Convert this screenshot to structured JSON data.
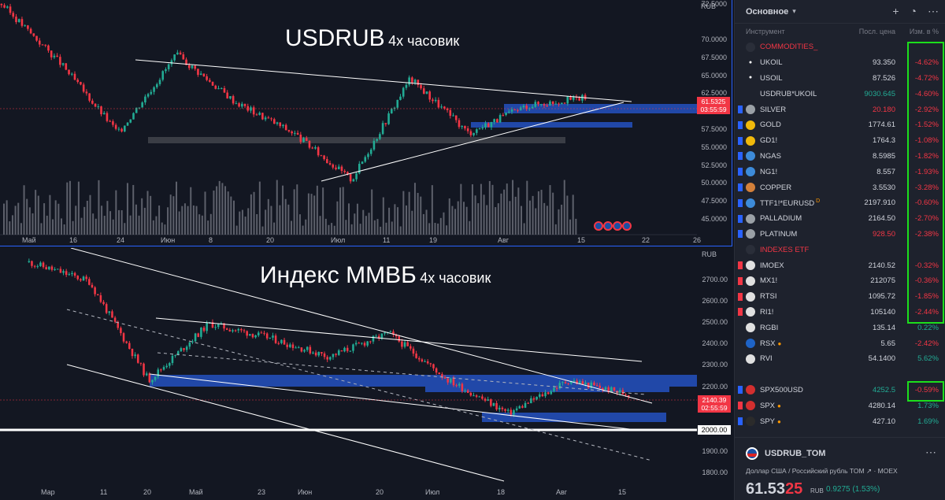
{
  "top_chart": {
    "title_big": "USDRUB",
    "title_small": "4x часовик",
    "currency": "RUB",
    "price_ticks": [
      "72.5000",
      "70.0000",
      "67.5000",
      "65.0000",
      "62.5000",
      "60.0000",
      "57.5000",
      "55.0000",
      "52.5000",
      "50.0000",
      "47.5000",
      "45.0000"
    ],
    "time_ticks": [
      "Май",
      "16",
      "24",
      "Июн",
      "8",
      "20",
      "Июл",
      "11",
      "19",
      "Авг",
      "15",
      "22",
      "26"
    ],
    "price_tag": [
      "61.5325",
      "03:55:59"
    ]
  },
  "bottom_chart": {
    "title_big": "Индекс ММВБ",
    "title_small": "4х часовик",
    "currency": "RUB",
    "price_ticks": [
      "2700.00",
      "2600.00",
      "2500.00",
      "2400.00",
      "2300.00",
      "2200.00",
      "2000.00",
      "1900.00",
      "1800.00"
    ],
    "time_ticks": [
      "Мар",
      "11",
      "20",
      "Май",
      "23",
      "Июн",
      "20",
      "Июл",
      "18",
      "Авг",
      "15"
    ],
    "price_tag": [
      "2140.39",
      "02:55:59"
    ],
    "level_tag": "2000.00"
  },
  "chart_data": [
    {
      "type": "line",
      "title": "USDRUB",
      "ylim": [
        44,
        74
      ],
      "x": [
        "Май",
        "16",
        "24",
        "Июн",
        "8",
        "20",
        "Июл",
        "11",
        "19",
        "Авг",
        "15"
      ],
      "series": [
        {
          "values": [
            73.5,
            66.0,
            57.0,
            67.0,
            61.0,
            57.0,
            51.0,
            64.0,
            57.0,
            60.5,
            61.53
          ]
        }
      ]
    },
    {
      "type": "line",
      "title": "Индекс ММВБ",
      "ylim": [
        1760,
        2760
      ],
      "x": [
        "Мар",
        "11",
        "20",
        "Май",
        "23",
        "Июн",
        "20",
        "Июл",
        "18",
        "Авг",
        "15"
      ],
      "series": [
        {
          "values": [
            2700,
            2620,
            2200,
            2440,
            2380,
            2300,
            2400,
            2200,
            2060,
            2200,
            2140.39
          ]
        }
      ]
    }
  ],
  "watchlist": {
    "title": "Основное",
    "col_instrument": "Инструмент",
    "col_last": "Посл. цена",
    "col_change": "Изм. в %",
    "rows": [
      {
        "kind": "section",
        "sym": "COMMODITIES_"
      },
      {
        "sym": "UKOIL",
        "last": "93.350",
        "chg": "-4.62%",
        "dir": "neg",
        "icon": "drop",
        "flag": "none"
      },
      {
        "sym": "USOIL",
        "last": "87.526",
        "chg": "-4.72%",
        "dir": "neg",
        "icon": "drop",
        "flag": "none"
      },
      {
        "sym": "USDRUB*UKOIL",
        "last": "9030.645",
        "chg": "-4.60%",
        "dir": "neg",
        "icon": "none",
        "flag": "none",
        "last_dir": "pos"
      },
      {
        "sym": "SILVER",
        "last": "20.180",
        "chg": "-2.92%",
        "dir": "neg",
        "icon": "silver",
        "flag": "blue",
        "last_dir": "neg"
      },
      {
        "sym": "GOLD",
        "last": "1774.61",
        "chg": "-1.52%",
        "dir": "neg",
        "icon": "gold",
        "flag": "blue"
      },
      {
        "sym": "GD1!",
        "last": "1764.3",
        "chg": "-1.08%",
        "dir": "neg",
        "icon": "gold",
        "flag": "blue"
      },
      {
        "sym": "NGAS",
        "last": "8.5985",
        "chg": "-1.82%",
        "dir": "neg",
        "icon": "gas",
        "flag": "blue"
      },
      {
        "sym": "NG1!",
        "last": "8.557",
        "chg": "-1.93%",
        "dir": "neg",
        "icon": "gas",
        "flag": "blue"
      },
      {
        "sym": "COPPER",
        "last": "3.5530",
        "chg": "-3.28%",
        "dir": "neg",
        "icon": "copper",
        "flag": "blue"
      },
      {
        "sym": "TTF1!*EURUSD",
        "last": "2197.910",
        "chg": "-0.60%",
        "dir": "neg",
        "icon": "gas",
        "flag": "blue",
        "sup": "D"
      },
      {
        "sym": "PALLADIUM",
        "last": "2164.50",
        "chg": "-2.70%",
        "dir": "neg",
        "icon": "silver",
        "flag": "blue"
      },
      {
        "sym": "PLATINUM",
        "last": "928.50",
        "chg": "-2.38%",
        "dir": "neg",
        "icon": "silver",
        "flag": "blue",
        "last_dir": "neg"
      },
      {
        "kind": "section",
        "sym": "INDEXES ETF"
      },
      {
        "sym": "IMOEX",
        "last": "2140.52",
        "chg": "-0.32%",
        "dir": "neg",
        "icon": "ru",
        "flag": "red"
      },
      {
        "sym": "MX1!",
        "last": "212075",
        "chg": "-0.36%",
        "dir": "neg",
        "icon": "ru",
        "flag": "red"
      },
      {
        "sym": "RTSI",
        "last": "1095.72",
        "chg": "-1.85%",
        "dir": "neg",
        "icon": "ru",
        "flag": "red"
      },
      {
        "sym": "RI1!",
        "last": "105140",
        "chg": "-2.44%",
        "dir": "neg",
        "icon": "ru",
        "flag": "red"
      },
      {
        "sym": "RGBI",
        "last": "135.14",
        "chg": "0.22%",
        "dir": "pos",
        "icon": "ru",
        "flag": "none"
      },
      {
        "sym": "RSX",
        "last": "5.65",
        "chg": "-2.42%",
        "dir": "neg",
        "icon": "rsx",
        "flag": "none",
        "dot": true
      },
      {
        "sym": "RVI",
        "last": "54.1400",
        "chg": "5.62%",
        "dir": "pos",
        "icon": "ru",
        "flag": "none"
      },
      {
        "kind": "blank"
      },
      {
        "sym": "SPX500USD",
        "last": "4252.5",
        "chg": "-0.59%",
        "dir": "neg",
        "icon": "spx",
        "flag": "blue",
        "last_dir": "pos"
      },
      {
        "sym": "SPX",
        "last": "4280.14",
        "chg": "1.73%",
        "dir": "pos",
        "icon": "spx",
        "flag": "red",
        "dot": true
      },
      {
        "sym": "SPY",
        "last": "427.10",
        "chg": "1.69%",
        "dir": "pos",
        "icon": "spy",
        "flag": "blue",
        "dot": true
      }
    ]
  },
  "detail": {
    "symbol": "USDRUB_TOM",
    "description": "Доллар США / Российский рубль TOM  ↗  ·  MOEX",
    "price_main": "61.53",
    "price_tail": "25",
    "currency": "RUB",
    "change": "0.9275 (1.53%)"
  },
  "colors": {
    "up": "#22ab94",
    "down": "#f23645",
    "zone": "#2148a8",
    "highlight": "#1cde1c"
  }
}
